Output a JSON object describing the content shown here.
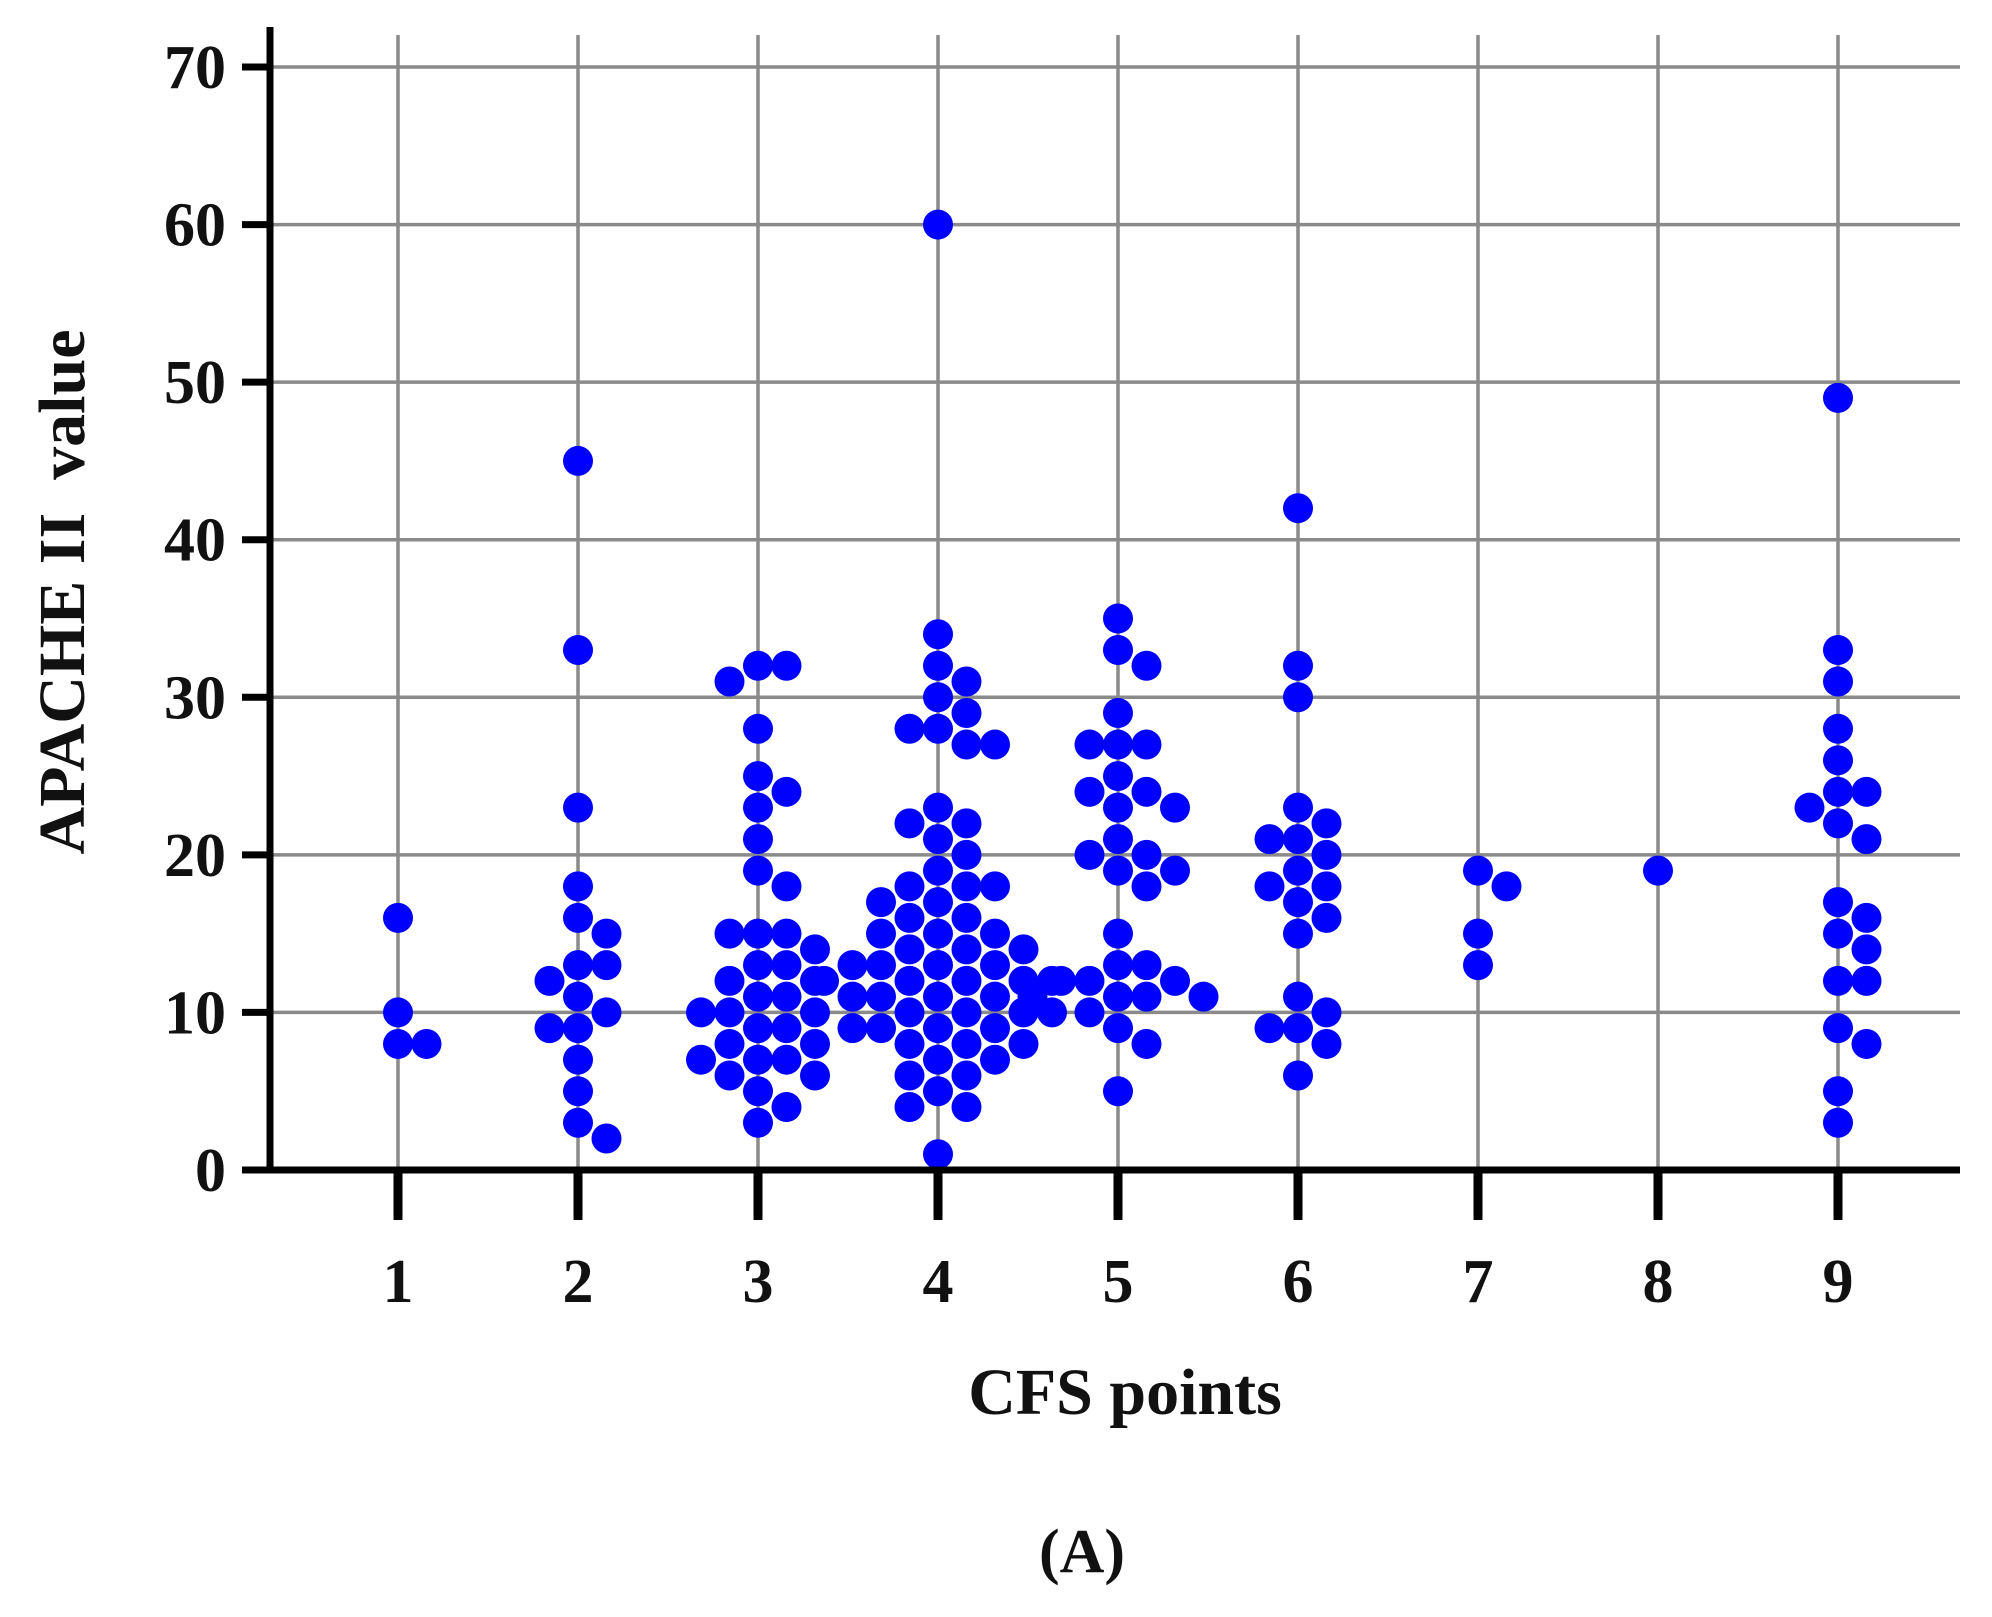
{
  "chart_data": {
    "type": "scatter",
    "xlabel": "CFS points",
    "ylabel": "APACHE II  value",
    "panel_label": "(A)",
    "categories": [
      "1",
      "2",
      "3",
      "4",
      "5",
      "6",
      "7",
      "8",
      "9"
    ],
    "x_ticks": [
      1,
      2,
      3,
      4,
      5,
      6,
      7,
      8,
      9
    ],
    "y_ticks": [
      0,
      10,
      20,
      30,
      40,
      50,
      60,
      70
    ],
    "ylim": [
      0,
      70
    ],
    "xlim": [
      0.5,
      9.5
    ],
    "grid": true,
    "legend": "none",
    "marker_color": "#0000ff",
    "axis_color": "#000000",
    "grid_color": "#8a8a8a",
    "points": [
      {
        "x": 1,
        "y": 16
      },
      {
        "x": 1,
        "y": 10
      },
      {
        "x": 1,
        "y": 8
      },
      {
        "x": 1,
        "y": 8
      },
      {
        "x": 2,
        "y": 45
      },
      {
        "x": 2,
        "y": 33
      },
      {
        "x": 2,
        "y": 23
      },
      {
        "x": 2,
        "y": 18
      },
      {
        "x": 2,
        "y": 16
      },
      {
        "x": 2,
        "y": 15
      },
      {
        "x": 2,
        "y": 13
      },
      {
        "x": 2,
        "y": 13
      },
      {
        "x": 2,
        "y": 12
      },
      {
        "x": 2,
        "y": 11
      },
      {
        "x": 2,
        "y": 10
      },
      {
        "x": 2,
        "y": 9
      },
      {
        "x": 2,
        "y": 9
      },
      {
        "x": 2,
        "y": 7
      },
      {
        "x": 2,
        "y": 5
      },
      {
        "x": 2,
        "y": 3
      },
      {
        "x": 2,
        "y": 2
      },
      {
        "x": 3,
        "y": 32
      },
      {
        "x": 3,
        "y": 32
      },
      {
        "x": 3,
        "y": 31
      },
      {
        "x": 3,
        "y": 28
      },
      {
        "x": 3,
        "y": 25
      },
      {
        "x": 3,
        "y": 24
      },
      {
        "x": 3,
        "y": 23
      },
      {
        "x": 3,
        "y": 21
      },
      {
        "x": 3,
        "y": 19
      },
      {
        "x": 3,
        "y": 18
      },
      {
        "x": 3,
        "y": 15
      },
      {
        "x": 3,
        "y": 15
      },
      {
        "x": 3,
        "y": 15
      },
      {
        "x": 3,
        "y": 14
      },
      {
        "x": 3,
        "y": 13
      },
      {
        "x": 3,
        "y": 13
      },
      {
        "x": 3,
        "y": 12
      },
      {
        "x": 3,
        "y": 12
      },
      {
        "x": 3,
        "y": 11
      },
      {
        "x": 3,
        "y": 11
      },
      {
        "x": 3,
        "y": 10
      },
      {
        "x": 3,
        "y": 10
      },
      {
        "x": 3,
        "y": 10
      },
      {
        "x": 3,
        "y": 9
      },
      {
        "x": 3,
        "y": 9
      },
      {
        "x": 3,
        "y": 8
      },
      {
        "x": 3,
        "y": 8
      },
      {
        "x": 3,
        "y": 7
      },
      {
        "x": 3,
        "y": 7
      },
      {
        "x": 3,
        "y": 7
      },
      {
        "x": 3,
        "y": 6
      },
      {
        "x": 3,
        "y": 6
      },
      {
        "x": 3,
        "y": 5
      },
      {
        "x": 3,
        "y": 4
      },
      {
        "x": 3,
        "y": 3
      },
      {
        "x": 4,
        "y": 60
      },
      {
        "x": 4,
        "y": 34
      },
      {
        "x": 4,
        "y": 32
      },
      {
        "x": 4,
        "y": 31
      },
      {
        "x": 4,
        "y": 30
      },
      {
        "x": 4,
        "y": 29
      },
      {
        "x": 4,
        "y": 28
      },
      {
        "x": 4,
        "y": 28
      },
      {
        "x": 4,
        "y": 27
      },
      {
        "x": 4,
        "y": 27
      },
      {
        "x": 4,
        "y": 23
      },
      {
        "x": 4,
        "y": 22
      },
      {
        "x": 4,
        "y": 22
      },
      {
        "x": 4,
        "y": 21
      },
      {
        "x": 4,
        "y": 20
      },
      {
        "x": 4,
        "y": 19
      },
      {
        "x": 4,
        "y": 18
      },
      {
        "x": 4,
        "y": 18
      },
      {
        "x": 4,
        "y": 18
      },
      {
        "x": 4,
        "y": 17
      },
      {
        "x": 4,
        "y": 17
      },
      {
        "x": 4,
        "y": 16
      },
      {
        "x": 4,
        "y": 16
      },
      {
        "x": 4,
        "y": 15
      },
      {
        "x": 4,
        "y": 15
      },
      {
        "x": 4,
        "y": 15
      },
      {
        "x": 4,
        "y": 14
      },
      {
        "x": 4,
        "y": 14
      },
      {
        "x": 4,
        "y": 14
      },
      {
        "x": 4,
        "y": 13
      },
      {
        "x": 4,
        "y": 13
      },
      {
        "x": 4,
        "y": 13
      },
      {
        "x": 4,
        "y": 13
      },
      {
        "x": 4,
        "y": 12
      },
      {
        "x": 4,
        "y": 12
      },
      {
        "x": 4,
        "y": 12
      },
      {
        "x": 4,
        "y": 12
      },
      {
        "x": 4,
        "y": 12
      },
      {
        "x": 4,
        "y": 11
      },
      {
        "x": 4,
        "y": 11
      },
      {
        "x": 4,
        "y": 11
      },
      {
        "x": 4,
        "y": 11
      },
      {
        "x": 4,
        "y": 10
      },
      {
        "x": 4,
        "y": 10
      },
      {
        "x": 4,
        "y": 10
      },
      {
        "x": 4,
        "y": 10
      },
      {
        "x": 4,
        "y": 9
      },
      {
        "x": 4,
        "y": 9
      },
      {
        "x": 4,
        "y": 9
      },
      {
        "x": 4,
        "y": 9
      },
      {
        "x": 4,
        "y": 8
      },
      {
        "x": 4,
        "y": 8
      },
      {
        "x": 4,
        "y": 8
      },
      {
        "x": 4,
        "y": 7
      },
      {
        "x": 4,
        "y": 7
      },
      {
        "x": 4,
        "y": 6
      },
      {
        "x": 4,
        "y": 6
      },
      {
        "x": 4,
        "y": 5
      },
      {
        "x": 4,
        "y": 4
      },
      {
        "x": 4,
        "y": 4
      },
      {
        "x": 4,
        "y": 1
      },
      {
        "x": 5,
        "y": 35
      },
      {
        "x": 5,
        "y": 33
      },
      {
        "x": 5,
        "y": 32
      },
      {
        "x": 5,
        "y": 29
      },
      {
        "x": 5,
        "y": 27
      },
      {
        "x": 5,
        "y": 27
      },
      {
        "x": 5,
        "y": 27
      },
      {
        "x": 5,
        "y": 25
      },
      {
        "x": 5,
        "y": 24
      },
      {
        "x": 5,
        "y": 24
      },
      {
        "x": 5,
        "y": 23
      },
      {
        "x": 5,
        "y": 23
      },
      {
        "x": 5,
        "y": 21
      },
      {
        "x": 5,
        "y": 20
      },
      {
        "x": 5,
        "y": 20
      },
      {
        "x": 5,
        "y": 19
      },
      {
        "x": 5,
        "y": 19
      },
      {
        "x": 5,
        "y": 18
      },
      {
        "x": 5,
        "y": 15
      },
      {
        "x": 5,
        "y": 13
      },
      {
        "x": 5,
        "y": 13
      },
      {
        "x": 5,
        "y": 12
      },
      {
        "x": 5,
        "y": 12
      },
      {
        "x": 5,
        "y": 12
      },
      {
        "x": 5,
        "y": 11
      },
      {
        "x": 5,
        "y": 11
      },
      {
        "x": 5,
        "y": 11
      },
      {
        "x": 5,
        "y": 11
      },
      {
        "x": 5,
        "y": 10
      },
      {
        "x": 5,
        "y": 9
      },
      {
        "x": 5,
        "y": 8
      },
      {
        "x": 5,
        "y": 5
      },
      {
        "x": 6,
        "y": 42
      },
      {
        "x": 6,
        "y": 32
      },
      {
        "x": 6,
        "y": 30
      },
      {
        "x": 6,
        "y": 23
      },
      {
        "x": 6,
        "y": 22
      },
      {
        "x": 6,
        "y": 21
      },
      {
        "x": 6,
        "y": 21
      },
      {
        "x": 6,
        "y": 20
      },
      {
        "x": 6,
        "y": 19
      },
      {
        "x": 6,
        "y": 18
      },
      {
        "x": 6,
        "y": 18
      },
      {
        "x": 6,
        "y": 17
      },
      {
        "x": 6,
        "y": 16
      },
      {
        "x": 6,
        "y": 15
      },
      {
        "x": 6,
        "y": 11
      },
      {
        "x": 6,
        "y": 10
      },
      {
        "x": 6,
        "y": 9
      },
      {
        "x": 6,
        "y": 9
      },
      {
        "x": 6,
        "y": 8
      },
      {
        "x": 6,
        "y": 6
      },
      {
        "x": 7,
        "y": 19
      },
      {
        "x": 7,
        "y": 18
      },
      {
        "x": 7,
        "y": 15
      },
      {
        "x": 7,
        "y": 13
      },
      {
        "x": 8,
        "y": 19
      },
      {
        "x": 9,
        "y": 49
      },
      {
        "x": 9,
        "y": 33
      },
      {
        "x": 9,
        "y": 31
      },
      {
        "x": 9,
        "y": 28
      },
      {
        "x": 9,
        "y": 26
      },
      {
        "x": 9,
        "y": 24
      },
      {
        "x": 9,
        "y": 24
      },
      {
        "x": 9,
        "y": 23
      },
      {
        "x": 9,
        "y": 22
      },
      {
        "x": 9,
        "y": 21
      },
      {
        "x": 9,
        "y": 17
      },
      {
        "x": 9,
        "y": 16
      },
      {
        "x": 9,
        "y": 15
      },
      {
        "x": 9,
        "y": 14
      },
      {
        "x": 9,
        "y": 12
      },
      {
        "x": 9,
        "y": 12
      },
      {
        "x": 9,
        "y": 9
      },
      {
        "x": 9,
        "y": 8
      },
      {
        "x": 9,
        "y": 5
      },
      {
        "x": 9,
        "y": 3
      }
    ]
  }
}
